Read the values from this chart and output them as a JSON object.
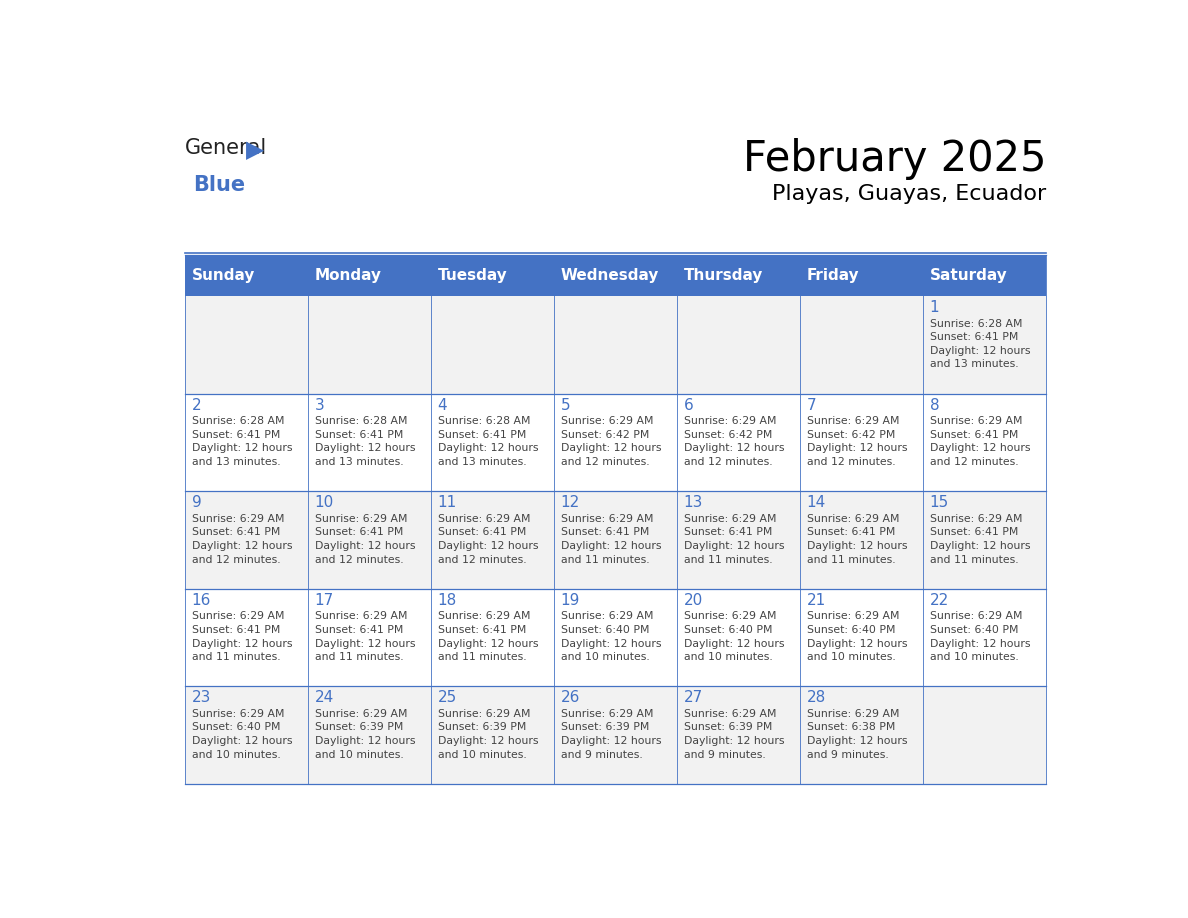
{
  "title": "February 2025",
  "subtitle": "Playas, Guayas, Ecuador",
  "days_of_week": [
    "Sunday",
    "Monday",
    "Tuesday",
    "Wednesday",
    "Thursday",
    "Friday",
    "Saturday"
  ],
  "header_bg": "#4472C4",
  "header_text": "#FFFFFF",
  "cell_bg_light": "#F2F2F2",
  "cell_bg_white": "#FFFFFF",
  "text_color": "#444444",
  "day_number_color": "#4472C4",
  "line_color": "#4472C4",
  "title_color": "#000000",
  "subtitle_color": "#000000",
  "logo_general_color": "#222222",
  "logo_blue_color": "#4472C4",
  "calendar_data": [
    [
      {
        "day": null
      },
      {
        "day": null
      },
      {
        "day": null
      },
      {
        "day": null
      },
      {
        "day": null
      },
      {
        "day": null
      },
      {
        "day": 1,
        "sunrise": "6:28 AM",
        "sunset": "6:41 PM",
        "daylight": "12 hours\nand 13 minutes."
      }
    ],
    [
      {
        "day": 2,
        "sunrise": "6:28 AM",
        "sunset": "6:41 PM",
        "daylight": "12 hours\nand 13 minutes."
      },
      {
        "day": 3,
        "sunrise": "6:28 AM",
        "sunset": "6:41 PM",
        "daylight": "12 hours\nand 13 minutes."
      },
      {
        "day": 4,
        "sunrise": "6:28 AM",
        "sunset": "6:41 PM",
        "daylight": "12 hours\nand 13 minutes."
      },
      {
        "day": 5,
        "sunrise": "6:29 AM",
        "sunset": "6:42 PM",
        "daylight": "12 hours\nand 12 minutes."
      },
      {
        "day": 6,
        "sunrise": "6:29 AM",
        "sunset": "6:42 PM",
        "daylight": "12 hours\nand 12 minutes."
      },
      {
        "day": 7,
        "sunrise": "6:29 AM",
        "sunset": "6:42 PM",
        "daylight": "12 hours\nand 12 minutes."
      },
      {
        "day": 8,
        "sunrise": "6:29 AM",
        "sunset": "6:41 PM",
        "daylight": "12 hours\nand 12 minutes."
      }
    ],
    [
      {
        "day": 9,
        "sunrise": "6:29 AM",
        "sunset": "6:41 PM",
        "daylight": "12 hours\nand 12 minutes."
      },
      {
        "day": 10,
        "sunrise": "6:29 AM",
        "sunset": "6:41 PM",
        "daylight": "12 hours\nand 12 minutes."
      },
      {
        "day": 11,
        "sunrise": "6:29 AM",
        "sunset": "6:41 PM",
        "daylight": "12 hours\nand 12 minutes."
      },
      {
        "day": 12,
        "sunrise": "6:29 AM",
        "sunset": "6:41 PM",
        "daylight": "12 hours\nand 11 minutes."
      },
      {
        "day": 13,
        "sunrise": "6:29 AM",
        "sunset": "6:41 PM",
        "daylight": "12 hours\nand 11 minutes."
      },
      {
        "day": 14,
        "sunrise": "6:29 AM",
        "sunset": "6:41 PM",
        "daylight": "12 hours\nand 11 minutes."
      },
      {
        "day": 15,
        "sunrise": "6:29 AM",
        "sunset": "6:41 PM",
        "daylight": "12 hours\nand 11 minutes."
      }
    ],
    [
      {
        "day": 16,
        "sunrise": "6:29 AM",
        "sunset": "6:41 PM",
        "daylight": "12 hours\nand 11 minutes."
      },
      {
        "day": 17,
        "sunrise": "6:29 AM",
        "sunset": "6:41 PM",
        "daylight": "12 hours\nand 11 minutes."
      },
      {
        "day": 18,
        "sunrise": "6:29 AM",
        "sunset": "6:41 PM",
        "daylight": "12 hours\nand 11 minutes."
      },
      {
        "day": 19,
        "sunrise": "6:29 AM",
        "sunset": "6:40 PM",
        "daylight": "12 hours\nand 10 minutes."
      },
      {
        "day": 20,
        "sunrise": "6:29 AM",
        "sunset": "6:40 PM",
        "daylight": "12 hours\nand 10 minutes."
      },
      {
        "day": 21,
        "sunrise": "6:29 AM",
        "sunset": "6:40 PM",
        "daylight": "12 hours\nand 10 minutes."
      },
      {
        "day": 22,
        "sunrise": "6:29 AM",
        "sunset": "6:40 PM",
        "daylight": "12 hours\nand 10 minutes."
      }
    ],
    [
      {
        "day": 23,
        "sunrise": "6:29 AM",
        "sunset": "6:40 PM",
        "daylight": "12 hours\nand 10 minutes."
      },
      {
        "day": 24,
        "sunrise": "6:29 AM",
        "sunset": "6:39 PM",
        "daylight": "12 hours\nand 10 minutes."
      },
      {
        "day": 25,
        "sunrise": "6:29 AM",
        "sunset": "6:39 PM",
        "daylight": "12 hours\nand 10 minutes."
      },
      {
        "day": 26,
        "sunrise": "6:29 AM",
        "sunset": "6:39 PM",
        "daylight": "12 hours\nand 9 minutes."
      },
      {
        "day": 27,
        "sunrise": "6:29 AM",
        "sunset": "6:39 PM",
        "daylight": "12 hours\nand 9 minutes."
      },
      {
        "day": 28,
        "sunrise": "6:29 AM",
        "sunset": "6:38 PM",
        "daylight": "12 hours\nand 9 minutes."
      },
      {
        "day": null
      }
    ]
  ]
}
